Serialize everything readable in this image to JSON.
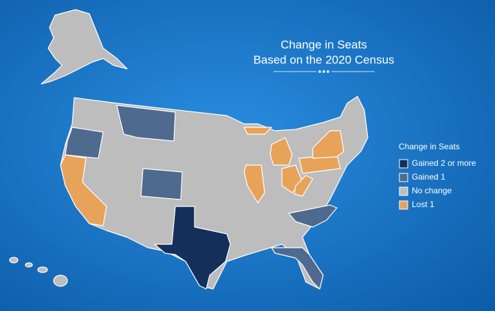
{
  "header": {
    "title_lines": [
      "Change in Seats",
      "Based on the 2020 Census"
    ]
  },
  "legend": {
    "title": "Change in Seats",
    "items": [
      {
        "label": "Gained 2 or more",
        "color": "#14305a"
      },
      {
        "label": "Gained 1",
        "color": "#4f6a8f"
      },
      {
        "label": "No change",
        "color": "#bdbdbd"
      },
      {
        "label": "Lost 1",
        "color": "#e8a35a"
      }
    ]
  }
}
